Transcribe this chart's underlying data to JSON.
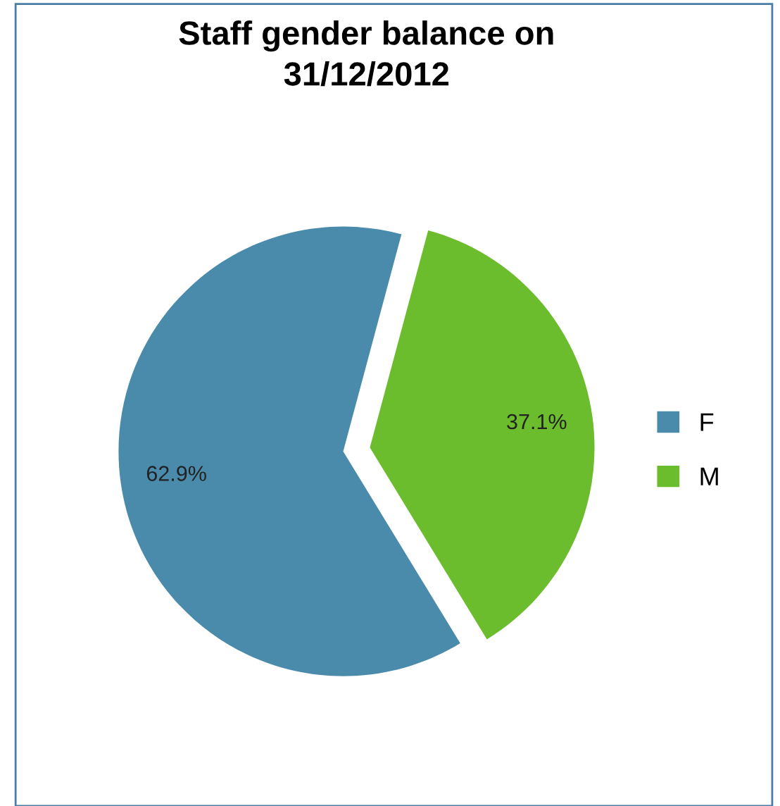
{
  "chart_data": {
    "type": "pie",
    "title": "Staff gender balance on\n31/12/2012",
    "categories": [
      "F",
      "M"
    ],
    "values": [
      62.9,
      37.1
    ],
    "colors": [
      "#4a8aab",
      "#6bbd2e"
    ],
    "value_labels": [
      "62.9%",
      "37.1%"
    ],
    "legend": "right"
  }
}
